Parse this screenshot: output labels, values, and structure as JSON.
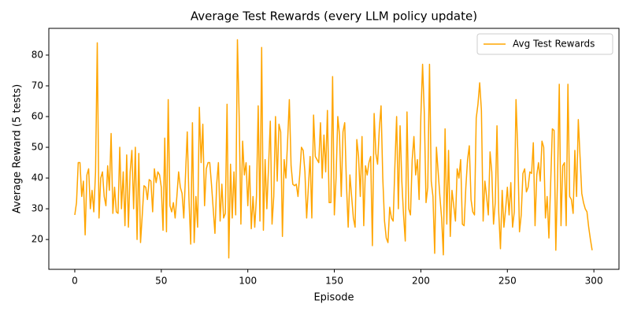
{
  "chart_data": {
    "type": "line",
    "title": "Average Test Rewards (every LLM policy update)",
    "xlabel": "Episode",
    "ylabel": "Average Reward (5 tests)",
    "xlim": [
      -15,
      314.5
    ],
    "ylim": [
      10.3,
      88.7
    ],
    "xticks": [
      0,
      50,
      100,
      150,
      200,
      250,
      300
    ],
    "yticks": [
      20,
      30,
      40,
      50,
      60,
      70,
      80
    ],
    "legend": "upper right",
    "grid": false,
    "x": [
      0,
      1,
      2,
      3,
      4,
      5,
      6,
      7,
      8,
      9,
      10,
      11,
      12,
      13,
      14,
      15,
      16,
      17,
      18,
      19,
      20,
      21,
      22,
      23,
      24,
      25,
      26,
      27,
      28,
      29,
      30,
      31,
      32,
      33,
      34,
      35,
      36,
      37,
      38,
      39,
      40,
      41,
      42,
      43,
      44,
      45,
      46,
      47,
      48,
      49,
      50,
      51,
      52,
      53,
      54,
      55,
      56,
      57,
      58,
      59,
      60,
      61,
      62,
      63,
      64,
      65,
      66,
      67,
      68,
      69,
      70,
      71,
      72,
      73,
      74,
      75,
      76,
      77,
      78,
      79,
      80,
      81,
      82,
      83,
      84,
      85,
      86,
      87,
      88,
      89,
      90,
      91,
      92,
      93,
      94,
      95,
      96,
      97,
      98,
      99,
      100,
      101,
      102,
      103,
      104,
      105,
      106,
      107,
      108,
      109,
      110,
      111,
      112,
      113,
      114,
      115,
      116,
      117,
      118,
      119,
      120,
      121,
      122,
      123,
      124,
      125,
      126,
      127,
      128,
      129,
      130,
      131,
      132,
      133,
      134,
      135,
      136,
      137,
      138,
      139,
      140,
      141,
      142,
      143,
      144,
      145,
      146,
      147,
      148,
      149,
      150,
      151,
      152,
      153,
      154,
      155,
      156,
      157,
      158,
      159,
      160,
      161,
      162,
      163,
      164,
      165,
      166,
      167,
      168,
      169,
      170,
      171,
      172,
      173,
      174,
      175,
      176,
      177,
      178,
      179,
      180,
      181,
      182,
      183,
      184,
      185,
      186,
      187,
      188,
      189,
      190,
      191,
      192,
      193,
      194,
      195,
      196,
      197,
      198,
      199,
      200,
      201,
      202,
      203,
      204,
      205,
      206,
      207,
      208,
      209,
      210,
      211,
      212,
      213,
      214,
      215,
      216,
      217,
      218,
      219,
      220,
      221,
      222,
      223,
      224,
      225,
      226,
      227,
      228,
      229,
      230,
      231,
      232,
      233,
      234,
      235,
      236,
      237,
      238,
      239,
      240,
      241,
      242,
      243,
      244,
      245,
      246,
      247,
      248,
      249,
      250,
      251,
      252,
      253,
      254,
      255,
      256,
      257,
      258,
      259,
      260,
      261,
      262,
      263,
      264,
      265,
      266,
      267,
      268,
      269,
      270,
      271,
      272,
      273,
      274,
      275,
      276,
      277,
      278,
      279,
      280,
      281,
      282,
      283,
      284,
      285,
      286,
      287,
      288,
      289,
      290,
      291,
      292,
      293,
      294,
      295,
      296,
      297,
      298,
      299
    ],
    "series": [
      {
        "name": "Avg Test Rewards",
        "color": "#ffa500",
        "values": [
          28,
          32,
          45,
          45,
          34,
          39,
          21.5,
          41,
          43,
          30,
          36,
          29,
          42,
          84,
          27,
          40,
          42,
          34,
          31,
          44,
          36,
          54.5,
          28.5,
          37,
          29,
          28.5,
          50,
          30,
          42,
          24.5,
          47.5,
          24,
          42,
          49,
          30,
          50,
          20,
          48,
          19,
          28,
          37.5,
          37,
          33,
          39.5,
          39,
          29,
          43,
          38.5,
          42,
          41,
          37,
          23,
          53,
          22.5,
          65.5,
          31,
          29,
          32,
          27,
          34,
          42,
          37,
          35,
          27,
          41,
          55,
          33,
          18.5,
          58,
          19,
          34,
          24,
          63,
          45,
          57.5,
          31,
          43,
          45,
          45,
          38,
          30,
          22,
          38,
          45,
          26,
          38,
          27,
          28.5,
          64,
          14,
          44.5,
          27,
          42,
          28,
          85,
          60,
          25,
          52,
          41,
          45,
          31,
          44,
          23.5,
          34,
          24,
          34,
          63.5,
          26,
          82.5,
          23,
          46,
          30,
          44,
          58.5,
          25,
          34,
          60,
          39,
          57.5,
          55,
          21,
          46,
          40,
          52,
          65.5,
          44,
          38,
          37.5,
          38,
          34,
          41,
          50,
          49,
          42,
          27,
          37,
          47,
          27,
          60.5,
          47,
          46,
          45,
          58,
          40,
          54,
          42,
          62,
          32,
          32,
          73,
          28,
          40,
          60,
          54,
          34,
          55,
          58,
          38,
          24,
          41,
          34,
          27,
          24,
          52.5,
          47,
          34,
          53.5,
          24.5,
          44,
          41,
          45,
          47,
          18,
          61,
          48,
          44.5,
          56,
          63.5,
          40,
          26,
          20.5,
          19,
          30.5,
          27,
          26,
          44,
          60,
          30,
          57,
          39,
          28,
          19.5,
          61.5,
          30,
          28,
          46,
          53.5,
          41,
          46,
          33,
          60,
          77,
          61,
          32,
          37,
          77,
          39,
          34,
          15.5,
          50,
          42,
          34,
          27,
          15,
          56,
          25,
          49,
          21,
          36,
          31,
          26,
          43,
          40,
          46,
          25,
          24.5,
          37,
          46,
          50.5,
          33,
          29,
          28,
          59.5,
          64,
          71,
          62,
          26,
          39,
          34,
          28,
          48.5,
          42,
          25,
          32,
          57,
          29,
          17,
          36,
          24,
          30,
          37,
          28,
          38.5,
          24,
          29,
          65.5,
          49,
          22.5,
          28,
          41.5,
          43,
          35.5,
          37,
          42,
          41.5,
          51.5,
          24.5,
          41,
          45,
          39,
          52,
          50,
          27,
          34,
          20.5,
          38,
          56,
          55.5,
          16.5,
          40,
          70.5,
          24.5,
          44,
          45,
          24.5,
          70.5,
          34,
          33,
          28.5,
          49,
          34,
          59,
          47,
          35,
          32,
          30,
          29,
          24,
          20,
          16.5
        ]
      }
    ]
  }
}
